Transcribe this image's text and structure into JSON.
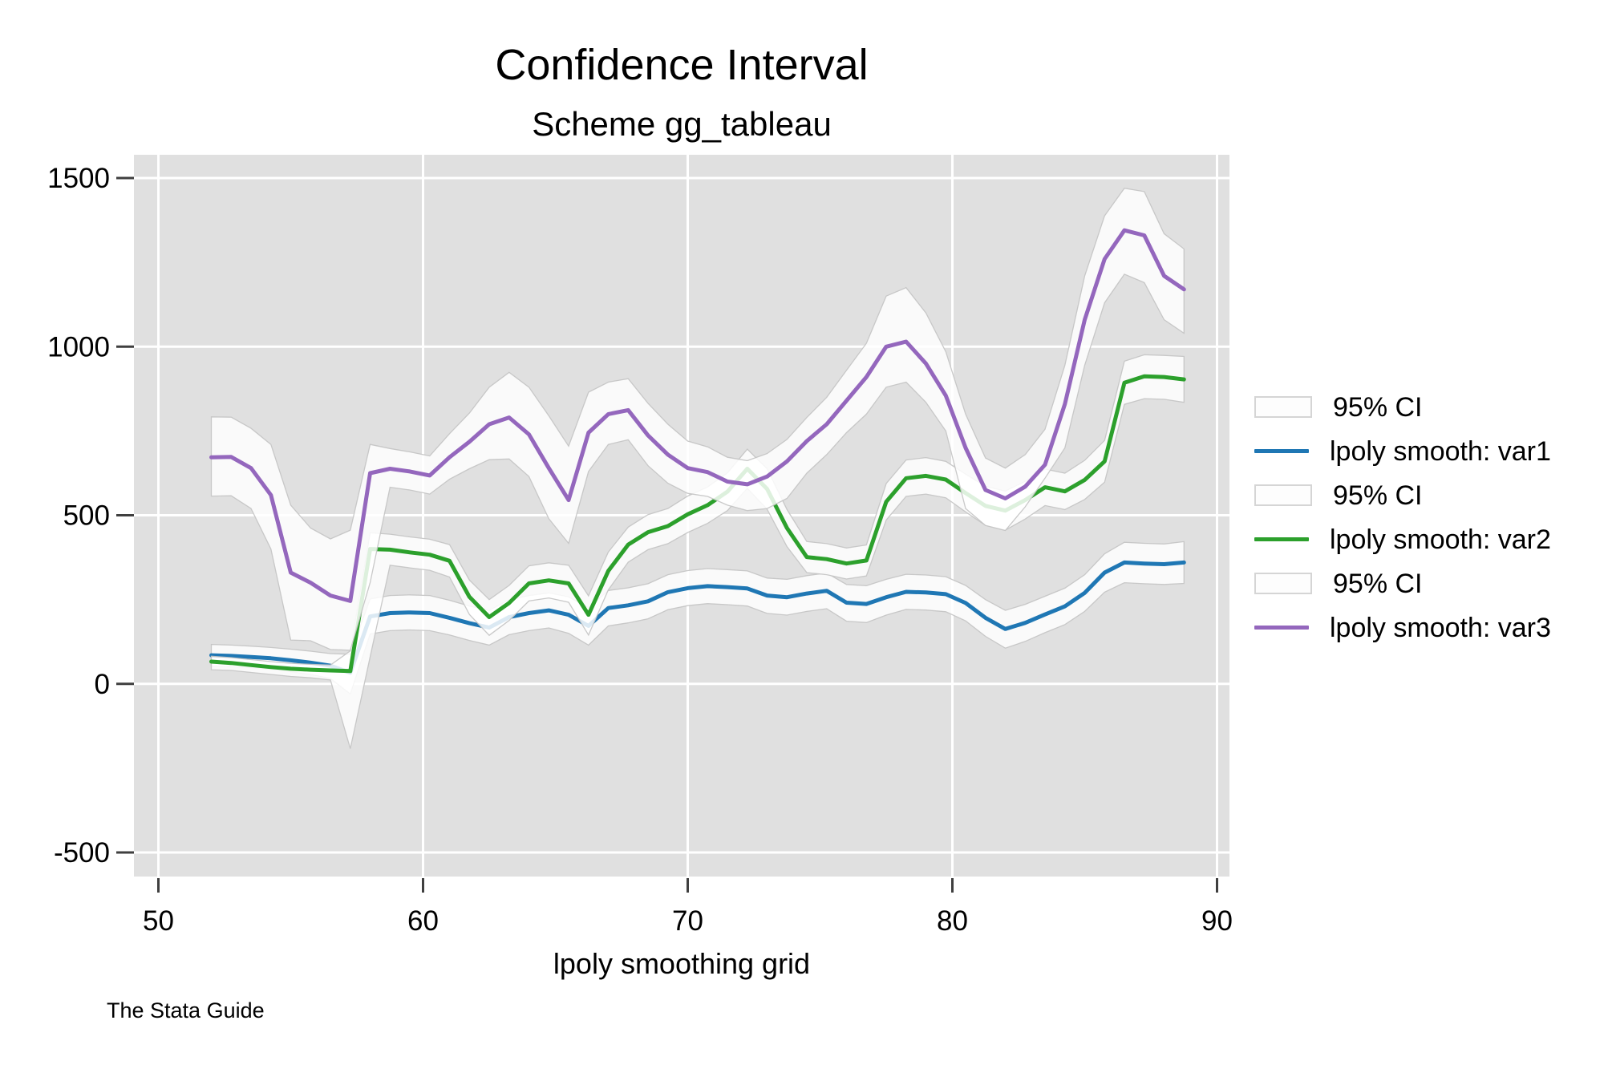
{
  "chart_data": {
    "type": "line",
    "title": "Confidence Interval",
    "subtitle": "Scheme gg_tableau",
    "xlabel": "lpoly smoothing grid",
    "caption": "The Stata Guide",
    "background": "#ffffff",
    "plot_background": "#e0e0e0",
    "gridline_color": "#ffffff",
    "tick_color": "#3f3f3f",
    "ci_fill": "rgba(255,255,255,0.84)",
    "ci_edge": "rgba(195,195,195,0.9)",
    "legend_position": "right",
    "x_ticks": [
      50,
      60,
      70,
      80,
      90
    ],
    "y_ticks": [
      -500,
      0,
      500,
      1000,
      1500
    ],
    "xlim": [
      49,
      90.5
    ],
    "ylim": [
      -570,
      1570
    ],
    "grid": true,
    "x": [
      52,
      52.75,
      53.5,
      54.25,
      55,
      55.75,
      56.5,
      57.25,
      58,
      58.75,
      59.5,
      60.25,
      61,
      61.75,
      62.5,
      63.25,
      64,
      64.75,
      65.5,
      66.25,
      67,
      67.75,
      68.5,
      69.25,
      70,
      70.75,
      71.5,
      72.25,
      73,
      73.75,
      74.5,
      75.25,
      76,
      76.75,
      77.5,
      78.25,
      79,
      79.75,
      80.5,
      81.25,
      82,
      82.75,
      83.5,
      84.25,
      85,
      85.75,
      86.5,
      87.25,
      88,
      88.75
    ],
    "series": [
      {
        "name": "lpoly smooth: var1",
        "ci_label": "95% CI",
        "color": "#1f77b4",
        "values": [
          85,
          83,
          80,
          76,
          70,
          63,
          54,
          33,
          200,
          210,
          212,
          210,
          196,
          180,
          167,
          198,
          210,
          218,
          205,
          172,
          225,
          233,
          245,
          272,
          284,
          290,
          287,
          283,
          262,
          257,
          268,
          276,
          241,
          237,
          257,
          273,
          271,
          266,
          240,
          196,
          163,
          181,
          206,
          230,
          270,
          330,
          360,
          357,
          355,
          360
        ],
        "ci_lo": [
          53,
          51,
          48,
          43,
          36,
          28,
          16,
          -30,
          148,
          158,
          160,
          158,
          145,
          129,
          115,
          146,
          158,
          166,
          150,
          115,
          172,
          181,
          193,
          220,
          232,
          238,
          235,
          231,
          209,
          204,
          215,
          223,
          186,
          182,
          204,
          221,
          219,
          214,
          187,
          141,
          106,
          126,
          152,
          176,
          215,
          272,
          300,
          297,
          295,
          298
        ],
        "ci_hi": [
          117,
          115,
          112,
          108,
          103,
          97,
          90,
          88,
          252,
          262,
          264,
          262,
          248,
          231,
          218,
          250,
          262,
          270,
          258,
          226,
          277,
          285,
          297,
          324,
          336,
          342,
          339,
          335,
          314,
          310,
          321,
          329,
          295,
          291,
          310,
          325,
          323,
          318,
          292,
          250,
          218,
          236,
          260,
          284,
          324,
          386,
          420,
          417,
          415,
          422
        ]
      },
      {
        "name": "lpoly smooth: var2",
        "ci_label": "95% CI",
        "color": "#2ca02c",
        "values": [
          66,
          62,
          56,
          50,
          45,
          42,
          40,
          38,
          400,
          398,
          390,
          383,
          365,
          258,
          198,
          240,
          298,
          307,
          298,
          205,
          335,
          413,
          450,
          468,
          503,
          530,
          570,
          638,
          578,
          462,
          376,
          370,
          357,
          366,
          540,
          610,
          617,
          606,
          566,
          528,
          514,
          545,
          583,
          571,
          605,
          660,
          893,
          912,
          910,
          903
        ],
        "ci_lo": [
          42,
          40,
          34,
          28,
          22,
          18,
          12,
          -192,
          80,
          352,
          344,
          337,
          317,
          206,
          144,
          188,
          246,
          255,
          242,
          145,
          279,
          361,
          398,
          416,
          449,
          476,
          514,
          580,
          518,
          407,
          330,
          324,
          311,
          320,
          486,
          556,
          563,
          552,
          510,
          470,
          456,
          489,
          529,
          517,
          547,
          598,
          829,
          846,
          844,
          835
        ],
        "ci_hi": [
          82,
          78,
          72,
          66,
          61,
          58,
          56,
          98,
          448,
          444,
          436,
          429,
          413,
          308,
          250,
          292,
          350,
          359,
          352,
          261,
          391,
          465,
          502,
          520,
          557,
          584,
          626,
          696,
          638,
          517,
          422,
          416,
          403,
          412,
          594,
          664,
          671,
          660,
          622,
          586,
          572,
          601,
          637,
          625,
          663,
          722,
          957,
          976,
          974,
          971
        ]
      },
      {
        "name": "lpoly smooth: var3",
        "ci_label": "95% CI",
        "color": "#9467bd",
        "values": [
          672,
          673,
          640,
          560,
          330,
          300,
          262,
          246,
          625,
          638,
          630,
          618,
          672,
          718,
          770,
          790,
          740,
          640,
          545,
          745,
          800,
          812,
          737,
          680,
          640,
          628,
          600,
          592,
          615,
          660,
          720,
          770,
          840,
          910,
          1000,
          1015,
          950,
          855,
          700,
          575,
          550,
          585,
          650,
          830,
          1080,
          1260,
          1345,
          1330,
          1210,
          1170
        ],
        "ci_lo": [
          557,
          558,
          520,
          400,
          130,
          128,
          102,
          100,
          300,
          583,
          575,
          563,
          607,
          638,
          665,
          667,
          615,
          490,
          417,
          630,
          710,
          724,
          647,
          595,
          565,
          556,
          530,
          514,
          520,
          550,
          625,
          680,
          745,
          800,
          880,
          895,
          835,
          750,
          520,
          470,
          455,
          525,
          610,
          700,
          945,
          1130,
          1215,
          1190,
          1080,
          1040
        ],
        "ci_hi": [
          792,
          791,
          758,
          710,
          530,
          462,
          430,
          456,
          710,
          698,
          688,
          676,
          742,
          803,
          880,
          924,
          880,
          795,
          705,
          865,
          895,
          905,
          832,
          770,
          720,
          703,
          672,
          662,
          683,
          725,
          790,
          850,
          930,
          1010,
          1150,
          1175,
          1100,
          985,
          800,
          670,
          640,
          680,
          755,
          945,
          1210,
          1388,
          1470,
          1460,
          1335,
          1290
        ]
      }
    ]
  }
}
